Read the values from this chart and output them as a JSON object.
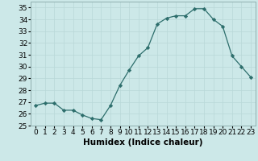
{
  "x": [
    0,
    1,
    2,
    3,
    4,
    5,
    6,
    7,
    8,
    9,
    10,
    11,
    12,
    13,
    14,
    15,
    16,
    17,
    18,
    19,
    20,
    21,
    22,
    23
  ],
  "y": [
    26.7,
    26.9,
    26.9,
    26.3,
    26.3,
    25.9,
    25.6,
    25.5,
    26.7,
    28.4,
    29.7,
    30.9,
    31.6,
    33.6,
    34.1,
    34.3,
    34.3,
    34.9,
    34.9,
    34.0,
    33.4,
    30.9,
    30.0,
    29.1
  ],
  "xlabel": "Humidex (Indice chaleur)",
  "xlim": [
    -0.5,
    23.5
  ],
  "ylim": [
    25,
    35.5
  ],
  "yticks": [
    25,
    26,
    27,
    28,
    29,
    30,
    31,
    32,
    33,
    34,
    35
  ],
  "line_color": "#2d6e6c",
  "marker_color": "#2d6e6c",
  "bg_color": "#cce8e8",
  "grid_color": "#b8d8d8",
  "label_fontsize": 7.5,
  "tick_fontsize": 6.5
}
